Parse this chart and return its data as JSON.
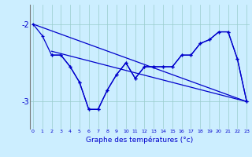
{
  "title": "Graphe des températures (°c)",
  "bg_color": "#cceeff",
  "grid_color": "#99cccc",
  "line_color": "#0000cc",
  "x_labels": [
    "0",
    "1",
    "2",
    "3",
    "4",
    "5",
    "6",
    "7",
    "8",
    "9",
    "10",
    "11",
    "12",
    "13",
    "14",
    "15",
    "16",
    "17",
    "18",
    "19",
    "20",
    "21",
    "22",
    "23"
  ],
  "yticks": [
    -3,
    -2
  ],
  "ylim": [
    -3.35,
    -1.75
  ],
  "xlim": [
    -0.3,
    23.3
  ],
  "series": [
    {
      "x": [
        0,
        1,
        2,
        3,
        4,
        5,
        6,
        7,
        8,
        9,
        10,
        11,
        12,
        13,
        14,
        15,
        16,
        17,
        18,
        19,
        20,
        21,
        22,
        23
      ],
      "y": [
        -2.0,
        -2.15,
        -2.4,
        -2.4,
        -2.55,
        -2.75,
        -3.1,
        -3.1,
        -2.85,
        -2.65,
        -2.5,
        -2.7,
        -2.55,
        -2.55,
        -2.55,
        -2.55,
        -2.4,
        -2.4,
        -2.25,
        -2.2,
        -2.1,
        -2.1,
        -2.45,
        -3.0
      ]
    },
    {
      "x": [
        2,
        3,
        4,
        5,
        6,
        7,
        8,
        9,
        10,
        11,
        12,
        13,
        14,
        15,
        16,
        17,
        18,
        19,
        20,
        21,
        22,
        23
      ],
      "y": [
        -2.4,
        -2.4,
        -2.55,
        -2.75,
        -3.1,
        -3.1,
        -2.85,
        -2.65,
        -2.5,
        -2.7,
        -2.55,
        -2.55,
        -2.55,
        -2.55,
        -2.4,
        -2.4,
        -2.25,
        -2.2,
        -2.1,
        -2.1,
        -2.45,
        -3.0
      ]
    },
    {
      "x": [
        0,
        23
      ],
      "y": [
        -2.0,
        -3.0
      ]
    },
    {
      "x": [
        2,
        23
      ],
      "y": [
        -2.35,
        -3.0
      ]
    }
  ]
}
